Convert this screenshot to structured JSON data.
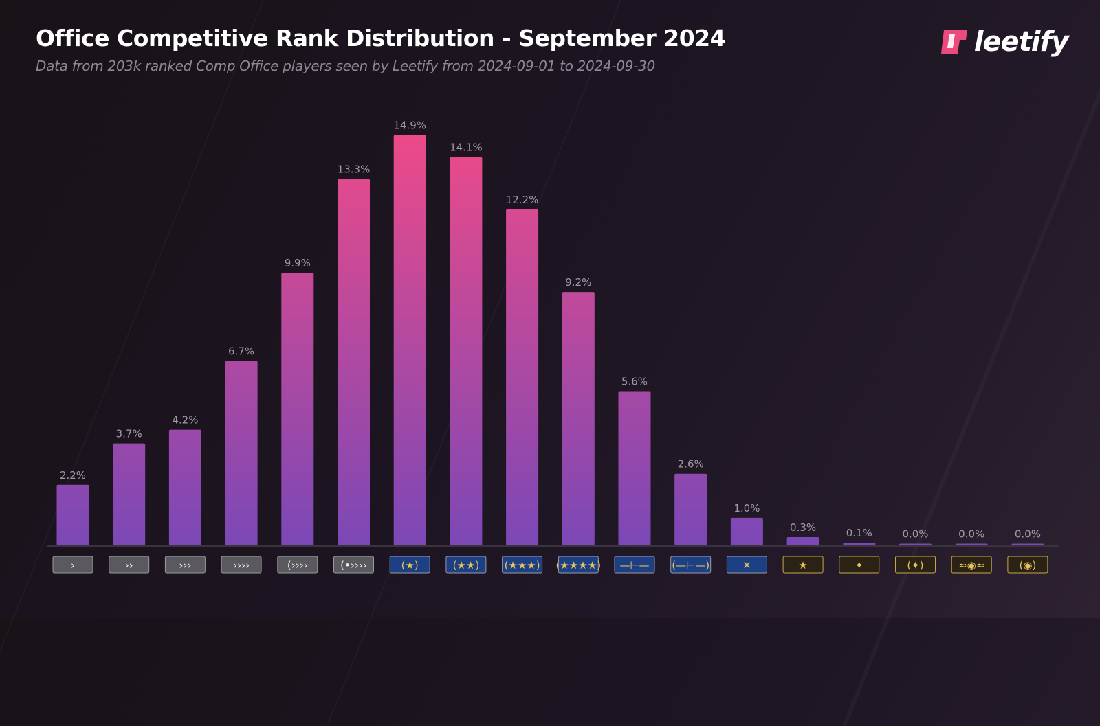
{
  "header": {
    "title": "Office Competitive Rank Distribution - September 2024",
    "subtitle": "Data from 203k ranked Comp Office players seen by Leetify from 2024-09-01 to 2024-09-30",
    "logo_text": "leetify"
  },
  "colors": {
    "bar_bottom": "#7b48b6",
    "bar_top": "#ee4a88",
    "label": "#a39aa8",
    "logo_accent": "#ec4a7c"
  },
  "chart_data": {
    "type": "bar",
    "title": "Office Competitive Rank Distribution - September 2024",
    "categories": [
      "silver-1-icon",
      "silver-2-icon",
      "silver-3-icon",
      "silver-4-icon",
      "silver-elite-icon",
      "silver-elite-master-icon",
      "gold-nova-1-icon",
      "gold-nova-2-icon",
      "gold-nova-3-icon",
      "gold-nova-master-icon",
      "master-guardian-1-icon",
      "master-guardian-2-icon",
      "master-guardian-elite-icon",
      "distinguished-master-guardian-icon",
      "legendary-eagle-icon",
      "legendary-eagle-master-icon",
      "supreme-master-first-class-icon",
      "global-elite-icon"
    ],
    "values": [
      2.2,
      3.7,
      4.2,
      6.7,
      9.9,
      13.3,
      14.9,
      14.1,
      12.2,
      9.2,
      5.6,
      2.6,
      1.0,
      0.3,
      0.1,
      0.0,
      0.0,
      0.0
    ],
    "data_labels": [
      "2.2%",
      "3.7%",
      "4.2%",
      "6.7%",
      "9.9%",
      "13.3%",
      "14.9%",
      "14.1%",
      "12.2%",
      "9.2%",
      "5.6%",
      "2.6%",
      "1.0%",
      "0.3%",
      "0.1%",
      "0.0%",
      "0.0%",
      "0.0%"
    ],
    "xlabel": "",
    "ylabel": "",
    "ylim": [
      0,
      15
    ],
    "grid": false,
    "legend": "none"
  }
}
